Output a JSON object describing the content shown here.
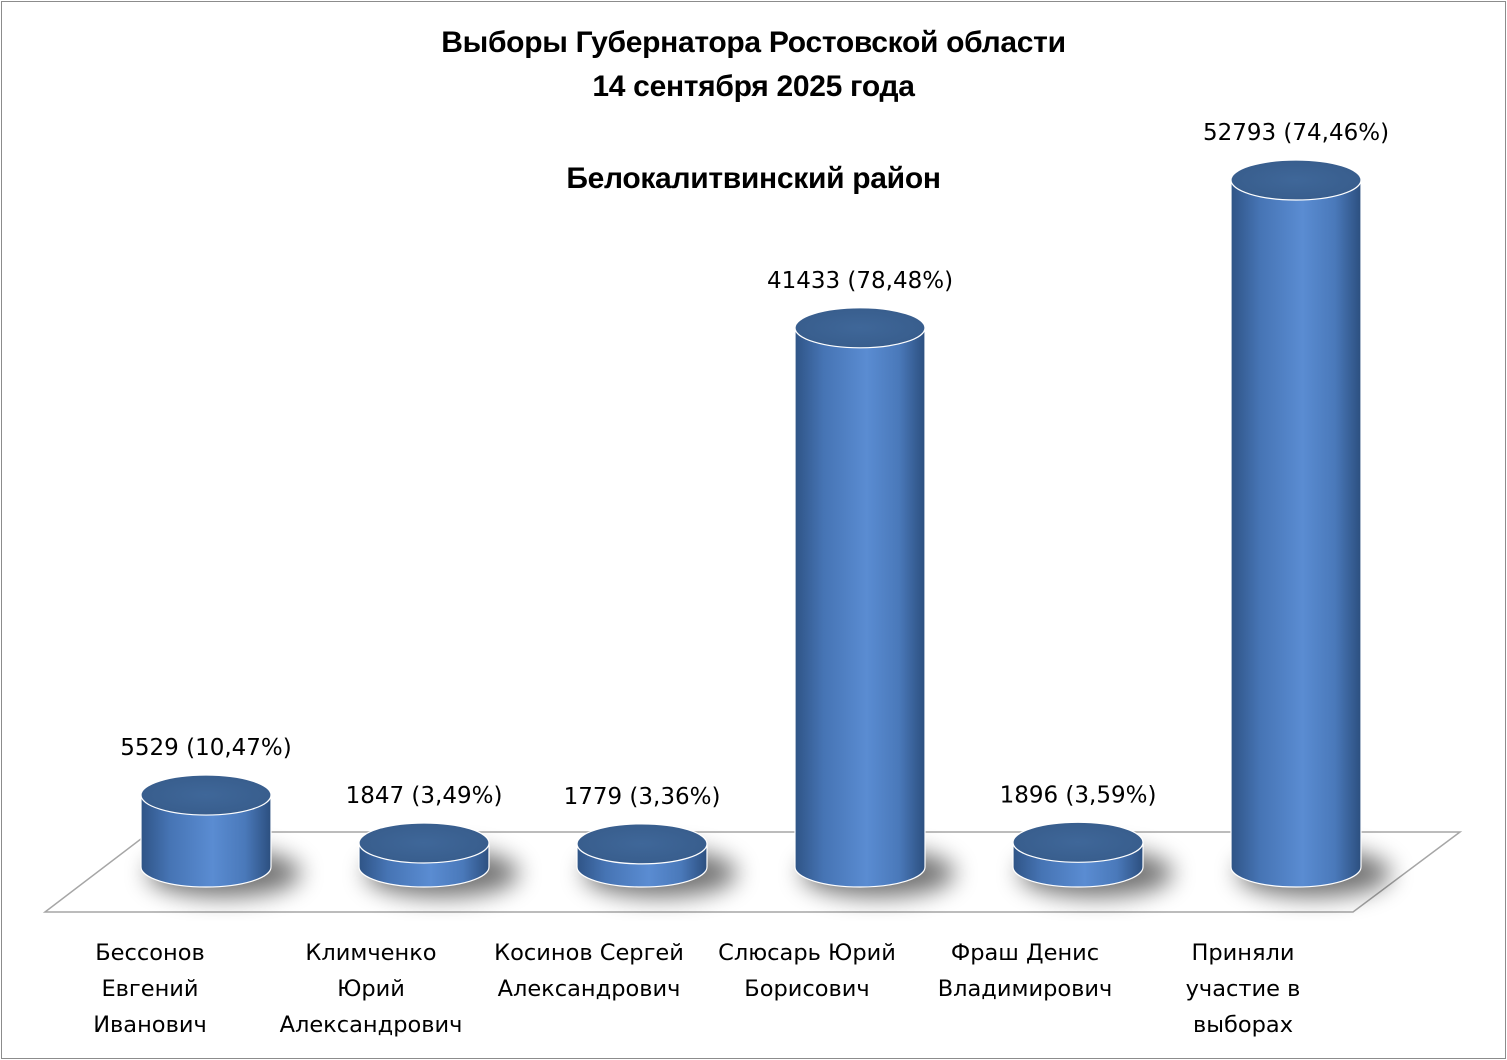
{
  "chart_data": {
    "type": "bar",
    "style": "3d-cylinder",
    "title_lines": [
      "Выборы Губернатора Ростовской области",
      "14 сентября 2025 года"
    ],
    "subtitle": "Белокалитвинский район",
    "categories": [
      [
        "Бессонов",
        "Евгений",
        "Иванович"
      ],
      [
        "Климченко",
        "Юрий",
        "Александрович"
      ],
      [
        "Косинов Сергей",
        "Александрович"
      ],
      [
        "Слюсарь Юрий",
        "Борисович"
      ],
      [
        "Фраш Денис",
        "Владимирович"
      ],
      [
        "Приняли",
        "участие в",
        "выборах"
      ]
    ],
    "values": [
      5529,
      1847,
      1779,
      41433,
      1896,
      52793
    ],
    "data_labels": [
      "5529 (10,47%)",
      "1847 (3,49%)",
      "1779 (3,36%)",
      "41433 (78,48%)",
      "1896 (3,59%)",
      "52793 (74,46%)"
    ],
    "grid": false,
    "legend": "none",
    "colors": {
      "bar_body": "#4f81bd",
      "bar_top": "#3e6596",
      "bar_edge": "#ffffff",
      "floor_edge": "#a6a6a6",
      "shadow": "#000000"
    }
  }
}
